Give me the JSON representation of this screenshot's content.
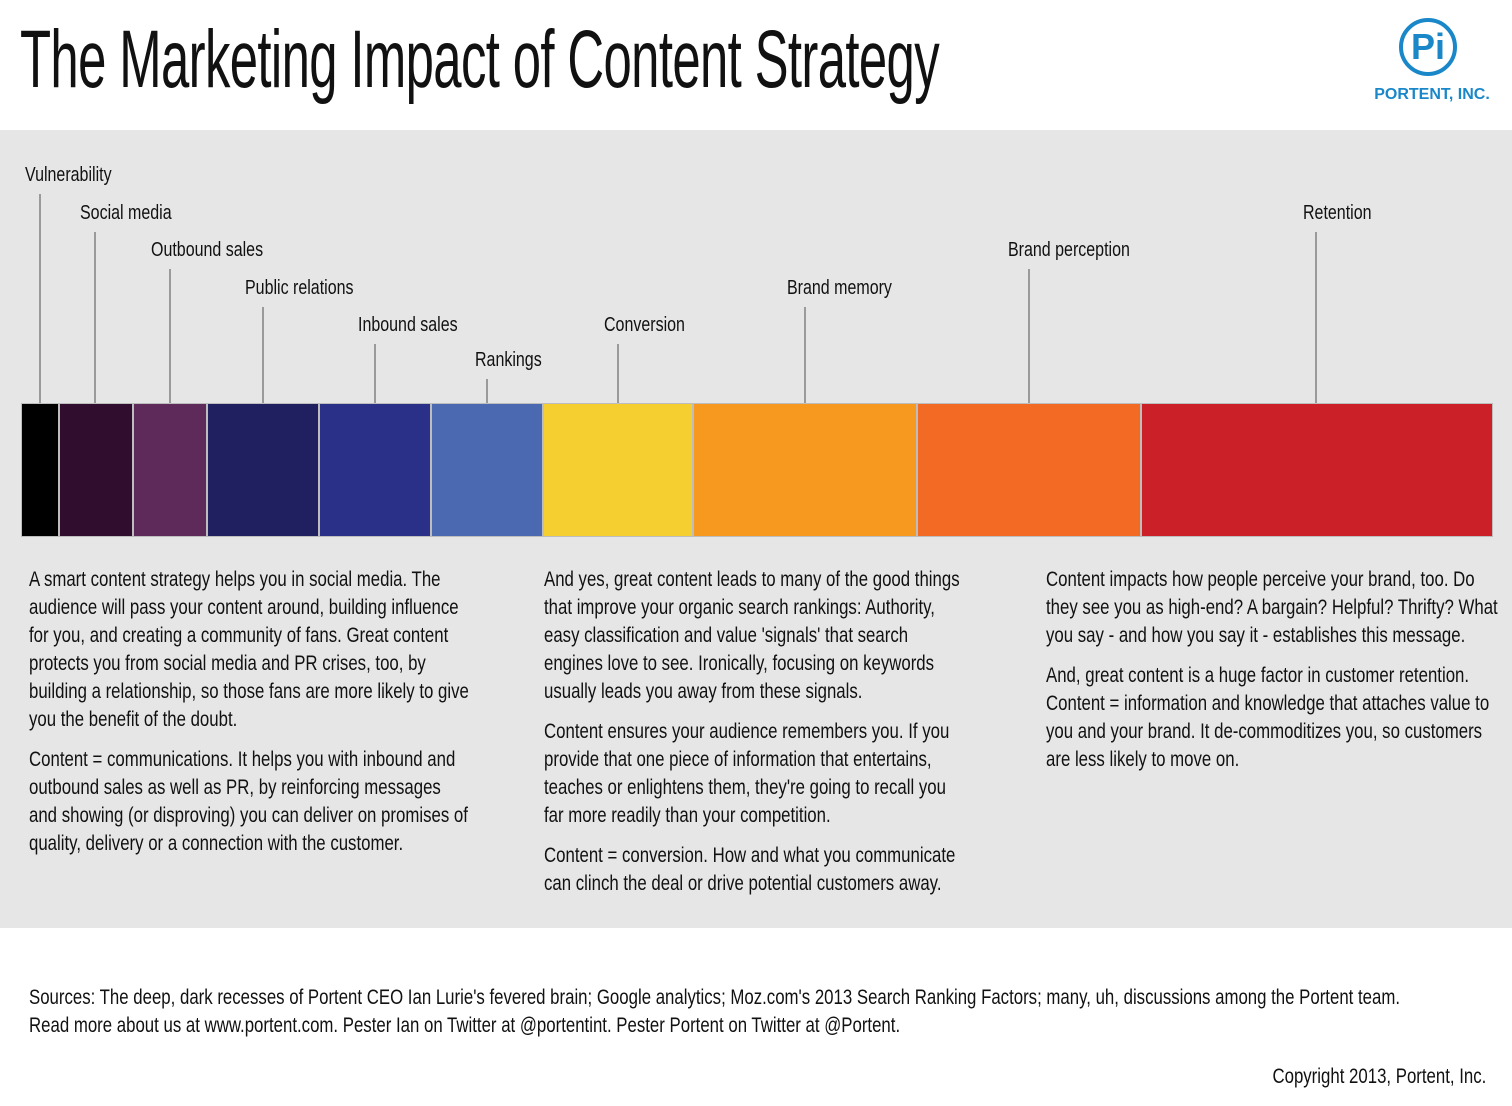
{
  "title": "The Marketing Impact of Content Strategy",
  "logo": {
    "mark": "Pi",
    "name": "PORTENT, INC.",
    "color": "#1a87c9"
  },
  "spectrum": [
    {
      "label": "Vulnerability",
      "color": "#000000"
    },
    {
      "label": "Social media",
      "color": "#300d2e"
    },
    {
      "label": "Outbound sales",
      "color": "#5e2a5a"
    },
    {
      "label": "Public relations",
      "color": "#201f5f"
    },
    {
      "label": "Inbound sales",
      "color": "#2a3087"
    },
    {
      "label": "Rankings",
      "color": "#4a69b0"
    },
    {
      "label": "Conversion",
      "color": "#f5cf30"
    },
    {
      "label": "Brand memory",
      "color": "#f7981f"
    },
    {
      "label": "Brand perception",
      "color": "#f26a23"
    },
    {
      "label": "Retention",
      "color": "#cc2029"
    }
  ],
  "columns": [
    [
      "A smart content strategy helps you in social media. The audience will pass your content around, building influence for you, and creating a community of fans. Great content protects you from social media and PR crises, too, by building a relationship, so those fans are more likely to give you the benefit of the doubt.",
      "Content = communications. It helps you with inbound and outbound sales as well as PR, by reinforcing messages and showing (or disproving) you can deliver on promises of quality, delivery or a connection with the customer."
    ],
    [
      "And yes, great content leads to many of the good things that improve your organic search rankings: Authority, easy classification and value 'signals' that search engines love to see. Ironically, focusing on keywords usually leads you away from these signals.",
      "Content ensures your audience remembers you. If you provide that one piece of information that entertains, teaches or enlightens them, they're going to recall you far more readily than your competition.",
      "Content = conversion. How and what you communicate can clinch the deal or drive potential customers away."
    ],
    [
      "Content impacts how people perceive your brand, too. Do they see you as high-end? A bargain? Helpful? Thrifty? What you say - and how you say it - establishes this message.",
      "And, great content is a huge factor in customer retention. Content = information and knowledge that attaches value to you and your brand. It de-commoditizes you, so customers are less likely to move on."
    ]
  ],
  "sources": [
    "Sources: The deep, dark recesses of Portent CEO Ian Lurie's fevered brain; Google analytics; Moz.com's 2013 Search Ranking Factors; many, uh, discussions among the Portent team.",
    "Read more about us at www.portent.com. Pester Ian on Twitter at @portentint. Pester Portent on Twitter at @Portent."
  ],
  "copyright": "Copyright 2013, Portent, Inc."
}
